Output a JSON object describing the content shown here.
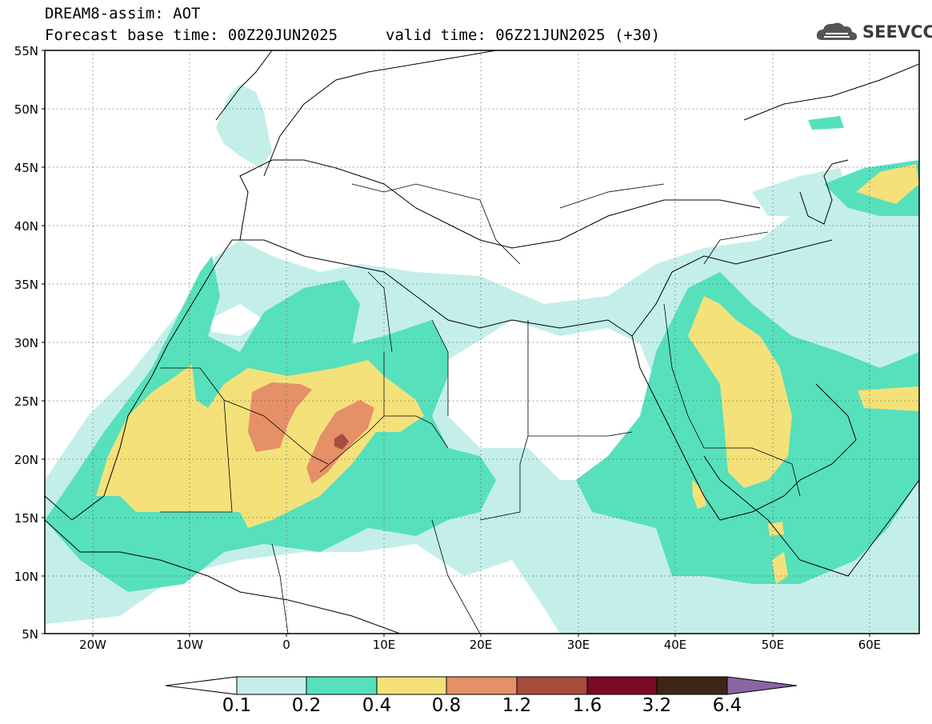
{
  "header": {
    "title": "DREAM8-assim: AOT",
    "base_time": "Forecast base time: 00Z20JUN2025",
    "valid_time": "valid time: 06Z21JUN2025 (+30)",
    "logo_text": "SEEVCCC"
  },
  "map": {
    "lat_labels": [
      "55N",
      "50N",
      "45N",
      "40N",
      "35N",
      "30N",
      "25N",
      "20N",
      "15N",
      "10N",
      "5N"
    ],
    "lon_labels": [
      "20W",
      "10W",
      "0",
      "10E",
      "20E",
      "30E",
      "40E",
      "50E",
      "60E"
    ],
    "lon_range": [
      -25,
      65
    ],
    "lat_range": [
      5,
      55
    ],
    "gridlines": "dotted"
  },
  "colorbar": {
    "thresholds": [
      "0.1",
      "0.2",
      "0.4",
      "0.8",
      "1.2",
      "1.6",
      "3.2",
      "6.4"
    ],
    "colors": [
      "#ffffff",
      "#c4efe9",
      "#57e0bc",
      "#f4e17a",
      "#e59067",
      "#a84c3d",
      "#7a0a26",
      "#3d2617",
      "#8a65a6"
    ]
  }
}
